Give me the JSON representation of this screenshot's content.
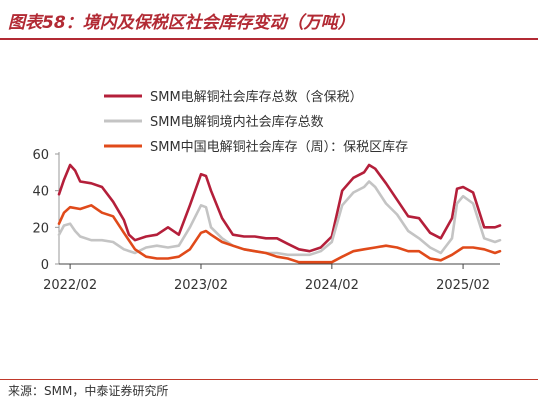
{
  "figure": {
    "title": "图表58：境内及保税区社会库存变动（万吨）",
    "source": "来源：SMM，中泰证券研究所",
    "colors": {
      "title": "#b22a34",
      "rule": "#b22a34"
    }
  },
  "chart_data": {
    "type": "line",
    "title": "",
    "xlabel": "",
    "ylabel": "",
    "ylim": [
      0,
      60
    ],
    "xlim": [
      "2022-01-01",
      "2025-05-15"
    ],
    "yticks": [
      0,
      20,
      40,
      60
    ],
    "xticks": [
      {
        "date": "2022-02-01",
        "label": "2022/02"
      },
      {
        "date": "2023-02-01",
        "label": "2023/02"
      },
      {
        "date": "2024-02-01",
        "label": "2024/02"
      },
      {
        "date": "2025-02-01",
        "label": "2025/02"
      }
    ],
    "grid": false,
    "legend_position": "top",
    "series": [
      {
        "name": "SMM电解铜社会库存总数（含保税）",
        "color": "#b41f3a",
        "points": [
          [
            "2022-01-01",
            38
          ],
          [
            "2022-01-15",
            46
          ],
          [
            "2022-02-01",
            54
          ],
          [
            "2022-02-15",
            51
          ],
          [
            "2022-03-01",
            45
          ],
          [
            "2022-04-01",
            44
          ],
          [
            "2022-05-01",
            42
          ],
          [
            "2022-06-01",
            34
          ],
          [
            "2022-07-01",
            24
          ],
          [
            "2022-07-15",
            16
          ],
          [
            "2022-08-01",
            13
          ],
          [
            "2022-09-01",
            15
          ],
          [
            "2022-10-01",
            16
          ],
          [
            "2022-11-01",
            20
          ],
          [
            "2022-12-01",
            16
          ],
          [
            "2023-01-01",
            32
          ],
          [
            "2023-02-01",
            49
          ],
          [
            "2023-02-15",
            48
          ],
          [
            "2023-03-01",
            40
          ],
          [
            "2023-04-01",
            25
          ],
          [
            "2023-05-01",
            16
          ],
          [
            "2023-06-01",
            15
          ],
          [
            "2023-07-01",
            15
          ],
          [
            "2023-08-01",
            14
          ],
          [
            "2023-09-01",
            14
          ],
          [
            "2023-10-01",
            11
          ],
          [
            "2023-11-01",
            8
          ],
          [
            "2023-12-01",
            7
          ],
          [
            "2024-01-01",
            9
          ],
          [
            "2024-02-01",
            15
          ],
          [
            "2024-03-01",
            40
          ],
          [
            "2024-04-01",
            47
          ],
          [
            "2024-05-01",
            50
          ],
          [
            "2024-05-15",
            54
          ],
          [
            "2024-06-01",
            52
          ],
          [
            "2024-07-01",
            44
          ],
          [
            "2024-08-01",
            35
          ],
          [
            "2024-09-01",
            26
          ],
          [
            "2024-10-01",
            25
          ],
          [
            "2024-11-01",
            17
          ],
          [
            "2024-12-01",
            14
          ],
          [
            "2025-01-01",
            25
          ],
          [
            "2025-01-15",
            41
          ],
          [
            "2025-02-01",
            42
          ],
          [
            "2025-03-01",
            39
          ],
          [
            "2025-04-01",
            20
          ],
          [
            "2025-05-01",
            20
          ],
          [
            "2025-05-15",
            21
          ]
        ]
      },
      {
        "name": "SMM电解铜境内社会库存总数",
        "color": "#c4c4c4",
        "points": [
          [
            "2022-01-01",
            16
          ],
          [
            "2022-01-15",
            21
          ],
          [
            "2022-02-01",
            22
          ],
          [
            "2022-02-15",
            18
          ],
          [
            "2022-03-01",
            15
          ],
          [
            "2022-04-01",
            13
          ],
          [
            "2022-05-01",
            13
          ],
          [
            "2022-06-01",
            12
          ],
          [
            "2022-07-01",
            8
          ],
          [
            "2022-08-01",
            6
          ],
          [
            "2022-09-01",
            9
          ],
          [
            "2022-10-01",
            10
          ],
          [
            "2022-11-01",
            9
          ],
          [
            "2022-12-01",
            10
          ],
          [
            "2023-01-01",
            20
          ],
          [
            "2023-02-01",
            32
          ],
          [
            "2023-02-15",
            31
          ],
          [
            "2023-03-01",
            20
          ],
          [
            "2023-04-01",
            14
          ],
          [
            "2023-05-01",
            10
          ],
          [
            "2023-06-01",
            8
          ],
          [
            "2023-07-01",
            7
          ],
          [
            "2023-08-01",
            6
          ],
          [
            "2023-09-01",
            6
          ],
          [
            "2023-10-01",
            5
          ],
          [
            "2023-11-01",
            5
          ],
          [
            "2023-12-01",
            5
          ],
          [
            "2024-01-01",
            7
          ],
          [
            "2024-02-01",
            12
          ],
          [
            "2024-03-01",
            32
          ],
          [
            "2024-04-01",
            39
          ],
          [
            "2024-05-01",
            42
          ],
          [
            "2024-05-15",
            45
          ],
          [
            "2024-06-01",
            42
          ],
          [
            "2024-07-01",
            33
          ],
          [
            "2024-08-01",
            27
          ],
          [
            "2024-09-01",
            18
          ],
          [
            "2024-10-01",
            14
          ],
          [
            "2024-11-01",
            9
          ],
          [
            "2024-12-01",
            6
          ],
          [
            "2025-01-01",
            14
          ],
          [
            "2025-01-15",
            33
          ],
          [
            "2025-02-01",
            37
          ],
          [
            "2025-03-01",
            33
          ],
          [
            "2025-04-01",
            14
          ],
          [
            "2025-05-01",
            12
          ],
          [
            "2025-05-15",
            13
          ]
        ]
      },
      {
        "name": "SMM中国电解铜社会库存（周）：保税区库存",
        "color": "#e04a1a",
        "points": [
          [
            "2022-01-01",
            22
          ],
          [
            "2022-01-15",
            28
          ],
          [
            "2022-02-01",
            31
          ],
          [
            "2022-03-01",
            30
          ],
          [
            "2022-04-01",
            32
          ],
          [
            "2022-05-01",
            28
          ],
          [
            "2022-06-01",
            26
          ],
          [
            "2022-07-01",
            17
          ],
          [
            "2022-08-01",
            8
          ],
          [
            "2022-09-01",
            4
          ],
          [
            "2022-10-01",
            3
          ],
          [
            "2022-11-01",
            3
          ],
          [
            "2022-12-01",
            4
          ],
          [
            "2023-01-01",
            8
          ],
          [
            "2023-02-01",
            17
          ],
          [
            "2023-02-15",
            18
          ],
          [
            "2023-03-01",
            16
          ],
          [
            "2023-04-01",
            12
          ],
          [
            "2023-05-01",
            10
          ],
          [
            "2023-06-01",
            8
          ],
          [
            "2023-07-01",
            7
          ],
          [
            "2023-08-01",
            6
          ],
          [
            "2023-09-01",
            4
          ],
          [
            "2023-10-01",
            3
          ],
          [
            "2023-11-01",
            1
          ],
          [
            "2023-12-01",
            1
          ],
          [
            "2024-01-01",
            1
          ],
          [
            "2024-02-01",
            1
          ],
          [
            "2024-03-01",
            4
          ],
          [
            "2024-04-01",
            7
          ],
          [
            "2024-05-01",
            8
          ],
          [
            "2024-06-01",
            9
          ],
          [
            "2024-07-01",
            10
          ],
          [
            "2024-08-01",
            9
          ],
          [
            "2024-09-01",
            7
          ],
          [
            "2024-10-01",
            7
          ],
          [
            "2024-11-01",
            3
          ],
          [
            "2024-12-01",
            2
          ],
          [
            "2025-01-01",
            5
          ],
          [
            "2025-02-01",
            9
          ],
          [
            "2025-03-01",
            9
          ],
          [
            "2025-04-01",
            8
          ],
          [
            "2025-05-01",
            6
          ],
          [
            "2025-05-15",
            7
          ]
        ]
      }
    ]
  }
}
